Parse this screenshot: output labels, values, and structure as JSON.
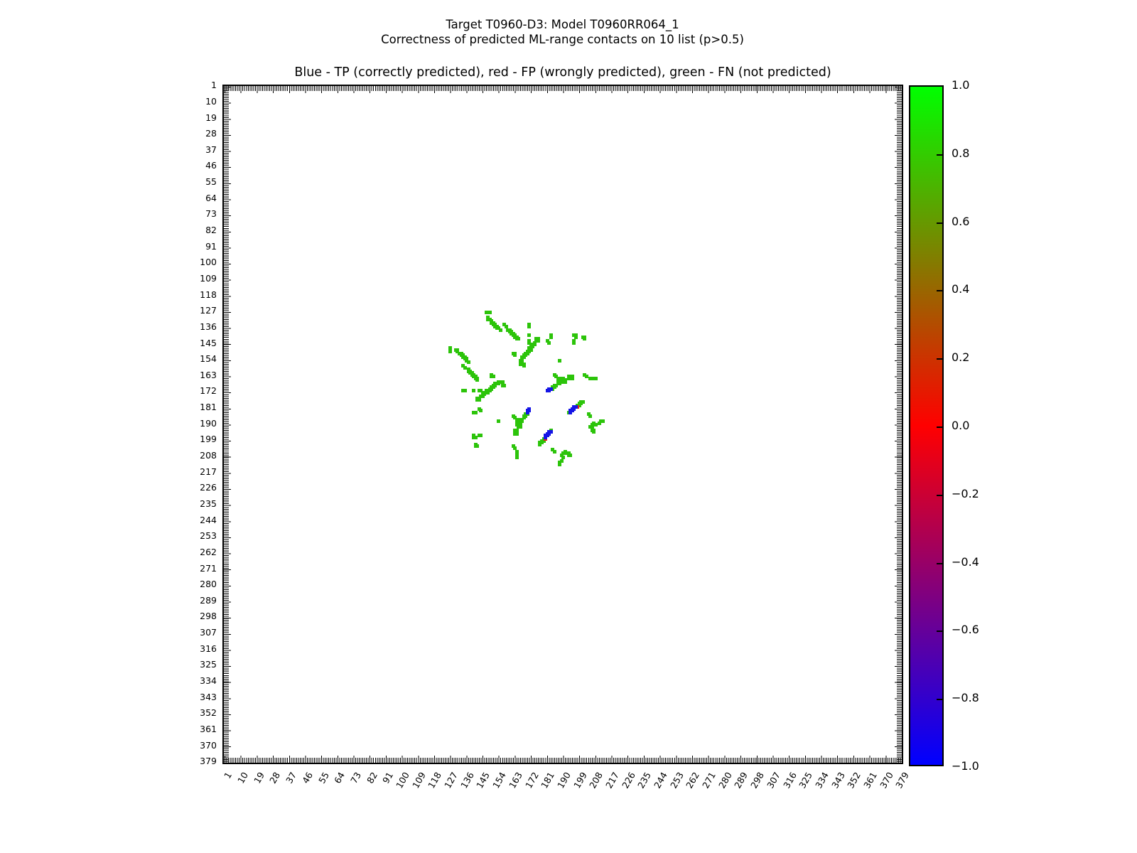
{
  "figure": {
    "suptitle_line1": "Target T0960-D3: Model T0960RR064_1",
    "suptitle_line2": "Correctness of predicted ML-range contacts on 10 list (p>0.5)",
    "axes_title": "Blue - TP (correctly predicted), red - FP (wrongly predicted), green - FN (not predicted)"
  },
  "axis": {
    "tick_labels": [
      1,
      10,
      19,
      28,
      37,
      46,
      55,
      64,
      73,
      82,
      91,
      100,
      109,
      118,
      127,
      136,
      145,
      154,
      163,
      172,
      181,
      190,
      199,
      208,
      217,
      226,
      235,
      244,
      253,
      262,
      271,
      280,
      289,
      298,
      307,
      316,
      325,
      334,
      343,
      352,
      361,
      370,
      379
    ],
    "tick_step": 9
  },
  "colorbar": {
    "tick_labels": [
      "1.0",
      "0.8",
      "0.6",
      "0.4",
      "0.2",
      "0.0",
      "−0.2",
      "−0.4",
      "−0.6",
      "−0.8",
      "−1.0"
    ],
    "tick_values": [
      1.0,
      0.8,
      0.6,
      0.4,
      0.2,
      0.0,
      -0.2,
      -0.4,
      -0.6,
      -0.8,
      -1.0
    ],
    "top_color": "#00ff00",
    "mid_color": "#ff0000",
    "bottom_color": "#0000ff"
  },
  "chart_data": {
    "type": "scatter",
    "title": "Blue - TP (correctly predicted), red - FP (wrongly predicted), green - FN (not predicted)",
    "xlabel": "",
    "ylabel": "",
    "x_range": [
      1,
      380
    ],
    "y_range": [
      1,
      380
    ],
    "y_axis_inverted": true,
    "symmetric_matrix": true,
    "legend": [
      {
        "label": "TP (correctly predicted)",
        "color_name": "blue"
      },
      {
        "label": "FP (wrongly predicted)",
        "color_name": "red"
      },
      {
        "label": "FN (not predicted)",
        "color_name": "green"
      }
    ],
    "series": [
      {
        "name": "FN",
        "color": "#2cc40a",
        "points": [
          [
            127,
            147
          ],
          [
            127,
            148
          ],
          [
            127,
            149
          ],
          [
            130,
            148
          ],
          [
            131,
            148
          ],
          [
            131,
            149
          ],
          [
            132,
            150
          ],
          [
            133,
            150
          ],
          [
            133,
            151
          ],
          [
            134,
            151
          ],
          [
            134,
            152
          ],
          [
            135,
            152
          ],
          [
            135,
            153
          ],
          [
            136,
            153
          ],
          [
            136,
            154
          ],
          [
            137,
            155
          ],
          [
            134,
            157
          ],
          [
            135,
            158
          ],
          [
            137,
            159
          ],
          [
            137,
            160
          ],
          [
            138,
            160
          ],
          [
            138,
            161
          ],
          [
            139,
            161
          ],
          [
            139,
            162
          ],
          [
            140,
            162
          ],
          [
            140,
            163
          ],
          [
            141,
            163
          ],
          [
            141,
            164
          ],
          [
            142,
            164
          ],
          [
            142,
            165
          ],
          [
            134,
            171
          ],
          [
            135,
            171
          ],
          [
            140,
            171
          ],
          [
            143,
            171
          ],
          [
            144,
            171
          ],
          [
            140,
            183
          ],
          [
            141,
            183
          ],
          [
            143,
            181
          ],
          [
            144,
            182
          ],
          [
            150,
            162
          ],
          [
            150,
            163
          ],
          [
            151,
            163
          ],
          [
            154,
            188
          ],
          [
            140,
            196
          ],
          [
            140,
            197
          ],
          [
            141,
            197
          ],
          [
            143,
            196
          ],
          [
            144,
            196
          ],
          [
            141,
            201
          ],
          [
            141,
            202
          ],
          [
            142,
            202
          ],
          [
            142,
            175
          ],
          [
            142,
            176
          ],
          [
            143,
            175
          ],
          [
            143,
            176
          ],
          [
            144,
            174
          ],
          [
            145,
            173
          ],
          [
            145,
            174
          ],
          [
            146,
            172
          ],
          [
            146,
            173
          ],
          [
            147,
            171
          ],
          [
            147,
            172
          ],
          [
            148,
            171
          ],
          [
            148,
            172
          ],
          [
            149,
            170
          ],
          [
            149,
            171
          ],
          [
            150,
            169
          ],
          [
            150,
            170
          ],
          [
            151,
            168
          ],
          [
            151,
            169
          ],
          [
            152,
            167
          ],
          [
            152,
            168
          ],
          [
            153,
            167
          ],
          [
            154,
            166
          ],
          [
            154,
            167
          ],
          [
            155,
            166
          ],
          [
            156,
            166
          ],
          [
            156,
            168
          ],
          [
            157,
            168
          ],
          [
            162,
            185
          ],
          [
            163,
            186
          ],
          [
            164,
            187
          ],
          [
            164,
            188
          ],
          [
            166,
            187
          ],
          [
            166,
            188
          ],
          [
            164,
            190
          ],
          [
            165,
            190
          ],
          [
            165,
            191
          ],
          [
            166,
            191
          ],
          [
            163,
            193
          ],
          [
            164,
            193
          ],
          [
            164,
            194
          ],
          [
            163,
            195
          ],
          [
            164,
            195
          ],
          [
            162,
            202
          ],
          [
            163,
            203
          ],
          [
            164,
            205
          ],
          [
            164,
            206
          ],
          [
            164,
            207
          ],
          [
            164,
            208
          ],
          [
            165,
            189
          ],
          [
            166,
            189
          ],
          [
            166,
            190
          ],
          [
            167,
            187
          ],
          [
            167,
            188
          ],
          [
            168,
            185
          ],
          [
            168,
            186
          ],
          [
            169,
            184
          ],
          [
            169,
            185
          ],
          [
            170,
            184
          ],
          [
            177,
            200
          ],
          [
            177,
            201
          ],
          [
            178,
            199
          ],
          [
            178,
            200
          ],
          [
            179,
            198
          ],
          [
            179,
            199
          ],
          [
            183,
            193
          ],
          [
            184,
            204
          ],
          [
            185,
            205
          ],
          [
            188,
            211
          ],
          [
            188,
            212
          ],
          [
            189,
            210
          ],
          [
            189,
            207
          ],
          [
            190,
            208
          ],
          [
            190,
            206
          ],
          [
            191,
            205
          ],
          [
            192,
            206
          ],
          [
            193,
            206
          ],
          [
            193,
            207
          ],
          [
            194,
            207
          ]
        ]
      },
      {
        "name": "FP",
        "color": "#e62314",
        "points": [
          [
            180,
            198
          ]
        ]
      },
      {
        "name": "TP",
        "color": "#1414e6",
        "points": [
          [
            170,
            182
          ],
          [
            170,
            183
          ],
          [
            171,
            181
          ],
          [
            171,
            182
          ],
          [
            180,
            196
          ],
          [
            180,
            197
          ],
          [
            181,
            195
          ],
          [
            181,
            196
          ],
          [
            182,
            194
          ],
          [
            182,
            195
          ],
          [
            183,
            194
          ]
        ]
      }
    ]
  }
}
